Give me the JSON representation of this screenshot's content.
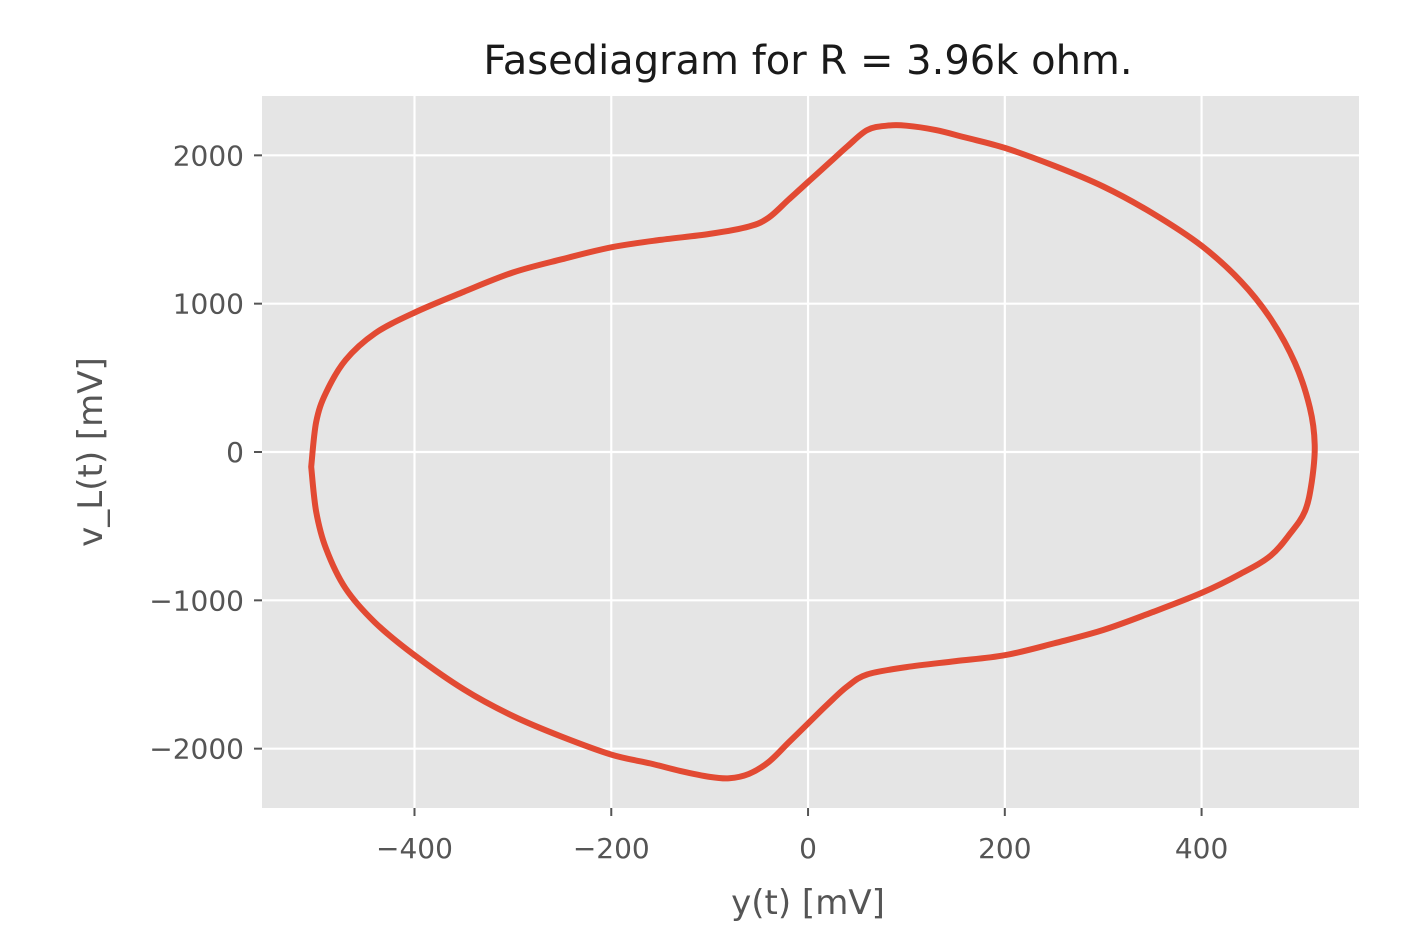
{
  "chart_data": {
    "type": "line",
    "title": "Fasediagram for R = 3.96k ohm.",
    "xlabel": "y(t) [mV]",
    "ylabel": "v_L(t) [mV]",
    "xlim": [
      -555,
      560
    ],
    "ylim": [
      -2400,
      2400
    ],
    "x_ticks": [
      -400,
      -200,
      0,
      200,
      400
    ],
    "y_ticks": [
      -2000,
      -1000,
      0,
      1000,
      2000
    ],
    "x_tick_labels": [
      "−400",
      "−200",
      "0",
      "200",
      "400"
    ],
    "y_tick_labels": [
      "−2000",
      "−1000",
      "0",
      "1000",
      "2000"
    ],
    "grid": true,
    "colors": {
      "plot_background": "#e5e5e5",
      "grid": "#ffffff",
      "series": "#e24a33"
    },
    "series": [
      {
        "x": [
          -505,
          -500,
          -490,
          -470,
          -440,
          -400,
          -350,
          -300,
          -250,
          -200,
          -150,
          -100,
          -60,
          -40,
          -20,
          0,
          20,
          40,
          60,
          80,
          100,
          130,
          160,
          200,
          250,
          300,
          350,
          400,
          440,
          470,
          495,
          510,
          515,
          512,
          505,
          490,
          470,
          440,
          400,
          350,
          300,
          250,
          200,
          150,
          100,
          60,
          40,
          20,
          0,
          -20,
          -40,
          -60,
          -80,
          -100,
          -130,
          -160,
          -200,
          -250,
          -300,
          -350,
          -400,
          -440,
          -470,
          -490,
          -500,
          -505
        ],
        "y": [
          -100,
          200,
          400,
          620,
          800,
          940,
          1080,
          1210,
          1300,
          1380,
          1430,
          1470,
          1520,
          1580,
          1700,
          1820,
          1940,
          2060,
          2170,
          2200,
          2200,
          2170,
          2120,
          2050,
          1930,
          1790,
          1610,
          1390,
          1150,
          900,
          600,
          300,
          50,
          -200,
          -400,
          -550,
          -700,
          -820,
          -950,
          -1080,
          -1200,
          -1290,
          -1370,
          -1410,
          -1450,
          -1500,
          -1580,
          -1700,
          -1830,
          -1960,
          -2090,
          -2170,
          -2200,
          -2190,
          -2150,
          -2100,
          -2040,
          -1920,
          -1780,
          -1600,
          -1370,
          -1150,
          -920,
          -650,
          -400,
          -100
        ]
      }
    ]
  }
}
